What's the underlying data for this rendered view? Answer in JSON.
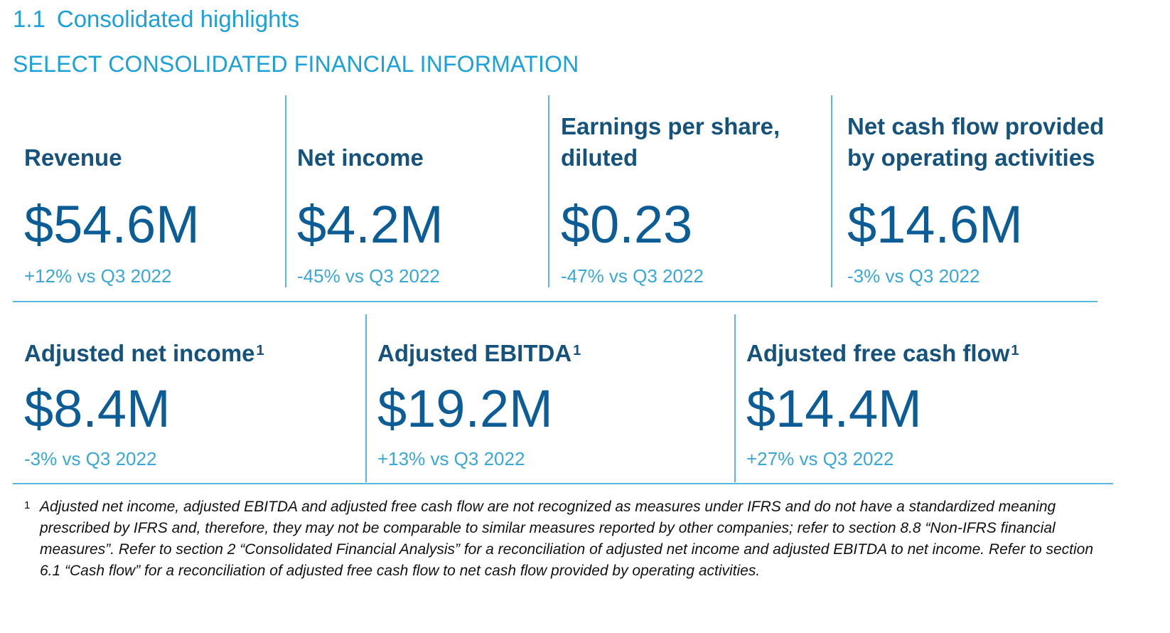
{
  "section": {
    "number": "1.1",
    "title": "Consolidated highlights"
  },
  "subheading": "SELECT CONSOLIDATED FINANCIAL INFORMATION",
  "top_row": [
    {
      "label_line1": "Revenue",
      "label_line2": "",
      "value": "$54.6M",
      "change": "+12% vs Q3 2022"
    },
    {
      "label_line1": "Net income",
      "label_line2": "",
      "value": "$4.2M",
      "change": "-45% vs Q3 2022"
    },
    {
      "label_line1": "Earnings per share,",
      "label_line2": "diluted",
      "value": "$0.23",
      "change": "-47% vs Q3 2022"
    },
    {
      "label_line1": "Net cash flow provided",
      "label_line2": "by operating activities",
      "value": "$14.6M",
      "change": "-3% vs Q3 2022"
    }
  ],
  "bottom_row": [
    {
      "label": "Adjusted net income",
      "footnote_ref": "1",
      "value": "$8.4M",
      "change": "-3% vs Q3 2022"
    },
    {
      "label": "Adjusted EBITDA",
      "footnote_ref": "1",
      "value": "$19.2M",
      "change": "+13% vs Q3 2022"
    },
    {
      "label": "Adjusted free cash flow",
      "footnote_ref": "1",
      "value": "$14.4M",
      "change": "+27% vs Q3 2022"
    }
  ],
  "footnote": {
    "mark": "1",
    "text": "Adjusted net income, adjusted EBITDA and adjusted free cash flow are not recognized as measures under IFRS and do not have a standardized meaning prescribed by IFRS and, therefore, they may not be comparable to similar measures reported by other companies; refer to section 8.8 “Non-IFRS financial measures”. Refer to section 2 “Consolidated Financial Analysis” for a reconciliation of adjusted net income and adjusted EBITDA to net income. Refer to section 6.1 “Cash flow” for a reconciliation of adjusted free cash flow to net cash flow provided by operating activities."
  }
}
